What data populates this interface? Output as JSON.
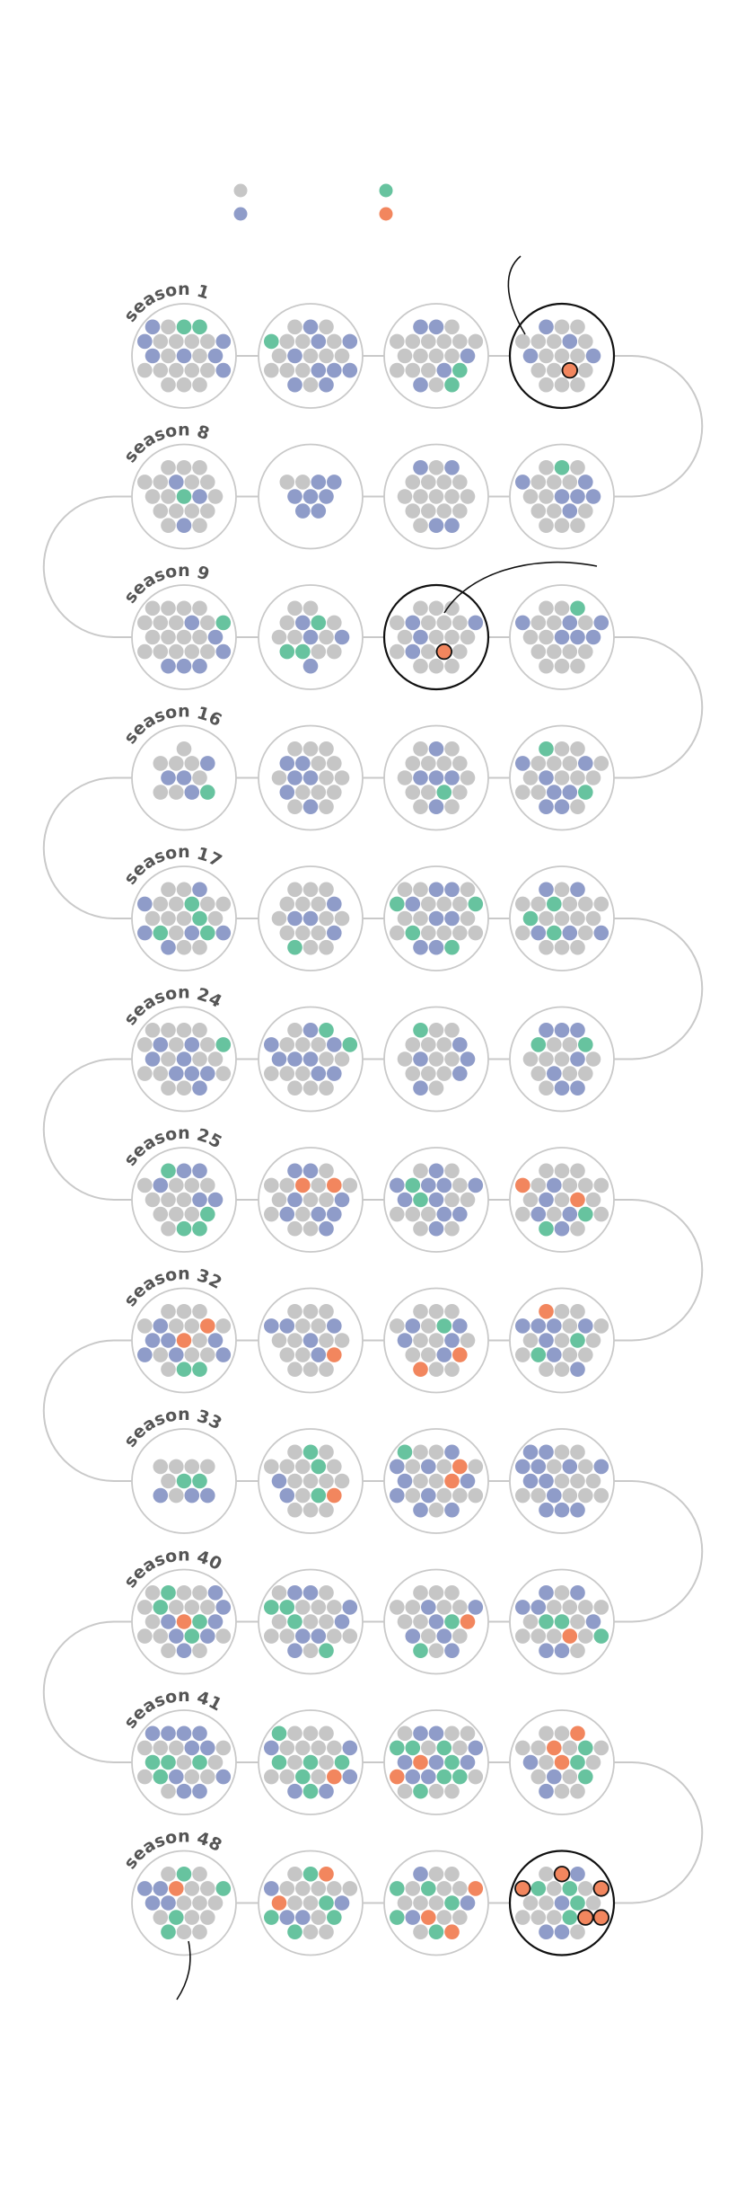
{
  "colors": {
    "gray": "#c6c6c6",
    "blue": "#8f9cc9",
    "green": "#67c39f",
    "orange": "#f2865e",
    "ring": "#c9c9c9",
    "highlight": "#111111",
    "label": "#555555"
  },
  "legend": [
    {
      "key": "gray",
      "label": ""
    },
    {
      "key": "blue",
      "label": ""
    },
    {
      "key": "green",
      "label": ""
    },
    {
      "key": "orange",
      "label": ""
    }
  ],
  "chart_data": {
    "type": "other",
    "title": "",
    "season_labels": [
      {
        "season": 1,
        "text": "season 1"
      },
      {
        "season": 8,
        "text": "season 8"
      },
      {
        "season": 9,
        "text": "season 9"
      },
      {
        "season": 16,
        "text": "season 16"
      },
      {
        "season": 17,
        "text": "season 17"
      },
      {
        "season": 24,
        "text": "season 24"
      },
      {
        "season": 25,
        "text": "season 25"
      },
      {
        "season": 32,
        "text": "season 32"
      },
      {
        "season": 33,
        "text": "season 33"
      },
      {
        "season": 40,
        "text": "season 40"
      },
      {
        "season": 41,
        "text": "season 41"
      },
      {
        "season": 48,
        "text": "season 48"
      }
    ],
    "seasons": [
      {
        "season": 1,
        "counts": {
          "gray": 15,
          "blue": 7,
          "green": 2,
          "orange": 0
        }
      },
      {
        "season": 2,
        "counts": {
          "gray": 13,
          "blue": 9,
          "green": 1,
          "orange": 0
        }
      },
      {
        "season": 3,
        "counts": {
          "gray": 15,
          "blue": 5,
          "green": 2,
          "orange": 0
        }
      },
      {
        "season": 4,
        "counts": {
          "gray": 15,
          "blue": 4,
          "green": 0,
          "orange": 1
        },
        "highlighted": true
      },
      {
        "season": 5,
        "counts": {
          "gray": 13,
          "blue": 6,
          "green": 1,
          "orange": 0
        }
      },
      {
        "season": 6,
        "counts": {
          "gray": 15,
          "blue": 4,
          "green": 0,
          "orange": 0
        }
      },
      {
        "season": 7,
        "counts": {
          "gray": 2,
          "blue": 7,
          "green": 0,
          "orange": 0
        }
      },
      {
        "season": 8,
        "counts": {
          "gray": 16,
          "blue": 3,
          "green": 1,
          "orange": 0
        }
      },
      {
        "season": 9,
        "counts": {
          "gray": 17,
          "blue": 6,
          "green": 1,
          "orange": 0
        }
      },
      {
        "season": 10,
        "counts": {
          "gray": 9,
          "blue": 4,
          "green": 3,
          "orange": 0
        }
      },
      {
        "season": 11,
        "counts": {
          "gray": 17,
          "blue": 4,
          "green": 0,
          "orange": 1
        },
        "highlighted": true
      },
      {
        "season": 12,
        "counts": {
          "gray": 14,
          "blue": 6,
          "green": 1,
          "orange": 0
        }
      },
      {
        "season": 13,
        "counts": {
          "gray": 13,
          "blue": 7,
          "green": 2,
          "orange": 0
        }
      },
      {
        "season": 14,
        "counts": {
          "gray": 13,
          "blue": 5,
          "green": 1,
          "orange": 0
        }
      },
      {
        "season": 15,
        "counts": {
          "gray": 13,
          "blue": 6,
          "green": 0,
          "orange": 0
        }
      },
      {
        "season": 16,
        "counts": {
          "gray": 7,
          "blue": 4,
          "green": 1,
          "orange": 0
        }
      },
      {
        "season": 17,
        "counts": {
          "gray": 13,
          "blue": 6,
          "green": 4,
          "orange": 0
        }
      },
      {
        "season": 18,
        "counts": {
          "gray": 14,
          "blue": 4,
          "green": 1,
          "orange": 0
        }
      },
      {
        "season": 19,
        "counts": {
          "gray": 14,
          "blue": 7,
          "green": 4,
          "orange": 0
        }
      },
      {
        "season": 20,
        "counts": {
          "gray": 15,
          "blue": 5,
          "green": 3,
          "orange": 0
        }
      },
      {
        "season": 21,
        "counts": {
          "gray": 10,
          "blue": 7,
          "green": 2,
          "orange": 0
        }
      },
      {
        "season": 22,
        "counts": {
          "gray": 12,
          "blue": 5,
          "green": 1,
          "orange": 0
        }
      },
      {
        "season": 23,
        "counts": {
          "gray": 12,
          "blue": 8,
          "green": 2,
          "orange": 0
        }
      },
      {
        "season": 24,
        "counts": {
          "gray": 15,
          "blue": 8,
          "green": 1,
          "orange": 0
        }
      },
      {
        "season": 25,
        "counts": {
          "gray": 11,
          "blue": 5,
          "green": 4,
          "orange": 0
        }
      },
      {
        "season": 26,
        "counts": {
          "gray": 12,
          "blue": 8,
          "green": 0,
          "orange": 2
        }
      },
      {
        "season": 27,
        "counts": {
          "gray": 10,
          "blue": 10,
          "green": 2,
          "orange": 0
        }
      },
      {
        "season": 28,
        "counts": {
          "gray": 14,
          "blue": 5,
          "green": 2,
          "orange": 2
        }
      },
      {
        "season": 29,
        "counts": {
          "gray": 12,
          "blue": 7,
          "green": 2,
          "orange": 1
        }
      },
      {
        "season": 30,
        "counts": {
          "gray": 12,
          "blue": 5,
          "green": 1,
          "orange": 2
        }
      },
      {
        "season": 31,
        "counts": {
          "gray": 14,
          "blue": 5,
          "green": 0,
          "orange": 1
        }
      },
      {
        "season": 32,
        "counts": {
          "gray": 12,
          "blue": 7,
          "green": 2,
          "orange": 2
        }
      },
      {
        "season": 33,
        "counts": {
          "gray": 6,
          "blue": 3,
          "green": 2,
          "orange": 0
        }
      },
      {
        "season": 34,
        "counts": {
          "gray": 14,
          "blue": 2,
          "green": 3,
          "orange": 1
        }
      },
      {
        "season": 35,
        "counts": {
          "gray": 12,
          "blue": 9,
          "green": 1,
          "orange": 2
        }
      },
      {
        "season": 36,
        "counts": {
          "gray": 12,
          "blue": 12,
          "green": 0,
          "orange": 0
        }
      },
      {
        "season": 37,
        "counts": {
          "gray": 12,
          "blue": 7,
          "green": 3,
          "orange": 1
        }
      },
      {
        "season": 38,
        "counts": {
          "gray": 12,
          "blue": 6,
          "green": 2,
          "orange": 1
        }
      },
      {
        "season": 39,
        "counts": {
          "gray": 13,
          "blue": 7,
          "green": 4,
          "orange": 0
        }
      },
      {
        "season": 40,
        "counts": {
          "gray": 13,
          "blue": 7,
          "green": 4,
          "orange": 1
        }
      },
      {
        "season": 41,
        "counts": {
          "gray": 10,
          "blue": 10,
          "green": 4,
          "orange": 0
        }
      },
      {
        "season": 42,
        "counts": {
          "gray": 12,
          "blue": 5,
          "green": 6,
          "orange": 1
        }
      },
      {
        "season": 43,
        "counts": {
          "gray": 9,
          "blue": 8,
          "green": 7,
          "orange": 2
        }
      },
      {
        "season": 44,
        "counts": {
          "gray": 12,
          "blue": 3,
          "green": 3,
          "orange": 3
        }
      },
      {
        "season": 45,
        "counts": {
          "gray": 10,
          "blue": 4,
          "green": 4,
          "orange": 5
        },
        "highlighted": true
      },
      {
        "season": 46,
        "counts": {
          "gray": 11,
          "blue": 3,
          "green": 5,
          "orange": 3
        }
      },
      {
        "season": 47,
        "counts": {
          "gray": 11,
          "blue": 4,
          "green": 5,
          "orange": 2
        }
      },
      {
        "season": 48,
        "counts": {
          "gray": 12,
          "blue": 4,
          "green": 4,
          "orange": 1
        }
      }
    ]
  }
}
